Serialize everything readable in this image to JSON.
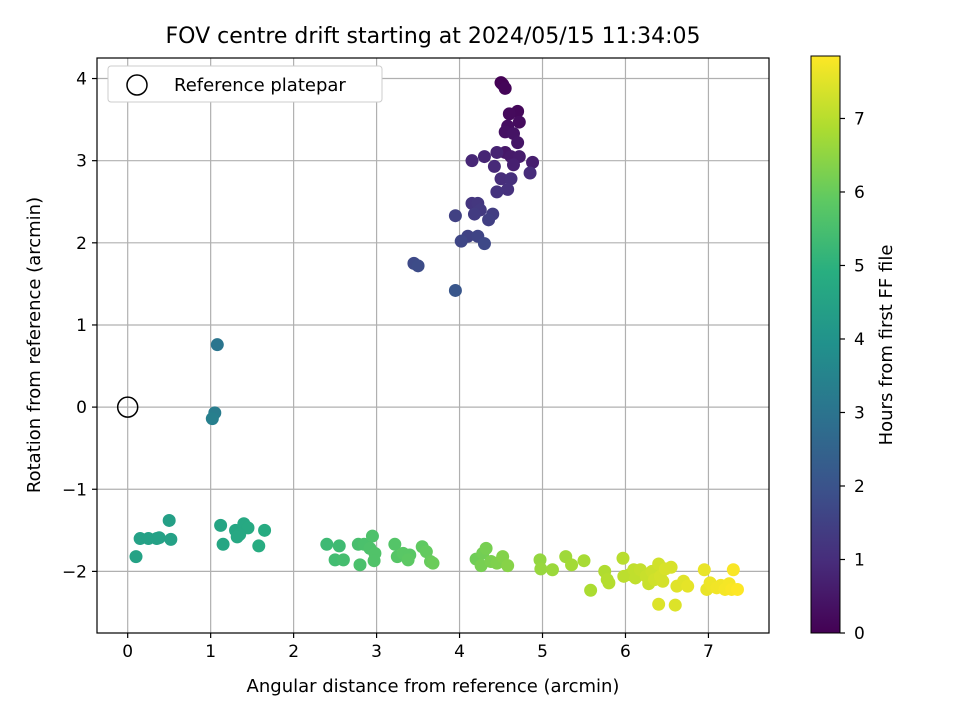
{
  "chart_data": {
    "type": "scatter",
    "title": "FOV centre drift starting at 2024/05/15 11:34:05",
    "xlabel": "Angular distance from reference (arcmin)",
    "ylabel": "Rotation from reference (arcmin)",
    "xlim": [
      -0.37,
      7.73
    ],
    "ylim": [
      -2.75,
      4.25
    ],
    "xticks": [
      0,
      1,
      2,
      3,
      4,
      5,
      6,
      7
    ],
    "xtick_labels": [
      "0",
      "1",
      "2",
      "3",
      "4",
      "5",
      "6",
      "7"
    ],
    "yticks": [
      -2,
      -1,
      0,
      1,
      2,
      3,
      4
    ],
    "ytick_labels": [
      "−2",
      "−1",
      "0",
      "1",
      "2",
      "3",
      "4"
    ],
    "grid": true,
    "legend": {
      "position": "top-left",
      "entries": [
        "Reference platepar"
      ]
    },
    "reference_point": {
      "x": 0,
      "y": 0
    },
    "colorbar": {
      "label": "Hours from first FF file",
      "colormap": "viridis",
      "range": [
        0,
        7.85
      ],
      "ticks": [
        0,
        1,
        2,
        3,
        4,
        5,
        6,
        7
      ],
      "tick_labels": [
        "0",
        "1",
        "2",
        "3",
        "4",
        "5",
        "6",
        "7"
      ]
    },
    "points": [
      {
        "x": 4.5,
        "y": 3.95,
        "h": 0.0
      },
      {
        "x": 4.52,
        "y": 3.93,
        "h": 0.05
      },
      {
        "x": 4.55,
        "y": 3.88,
        "h": 0.1
      },
      {
        "x": 4.7,
        "y": 3.6,
        "h": 0.15
      },
      {
        "x": 4.6,
        "y": 3.57,
        "h": 0.2
      },
      {
        "x": 4.72,
        "y": 3.47,
        "h": 0.25
      },
      {
        "x": 4.58,
        "y": 3.42,
        "h": 0.3
      },
      {
        "x": 4.55,
        "y": 3.35,
        "h": 0.35
      },
      {
        "x": 4.65,
        "y": 3.33,
        "h": 0.4
      },
      {
        "x": 4.7,
        "y": 3.22,
        "h": 0.45
      },
      {
        "x": 4.55,
        "y": 3.1,
        "h": 0.5
      },
      {
        "x": 4.62,
        "y": 3.05,
        "h": 0.55
      },
      {
        "x": 4.72,
        "y": 3.05,
        "h": 0.6
      },
      {
        "x": 4.88,
        "y": 2.98,
        "h": 0.65
      },
      {
        "x": 4.65,
        "y": 2.95,
        "h": 0.7
      },
      {
        "x": 4.45,
        "y": 3.1,
        "h": 0.75
      },
      {
        "x": 4.3,
        "y": 3.05,
        "h": 0.8
      },
      {
        "x": 4.15,
        "y": 3.0,
        "h": 0.85
      },
      {
        "x": 4.42,
        "y": 2.93,
        "h": 0.9
      },
      {
        "x": 4.85,
        "y": 2.85,
        "h": 0.95
      },
      {
        "x": 4.5,
        "y": 2.78,
        "h": 1.0
      },
      {
        "x": 4.62,
        "y": 2.78,
        "h": 1.05
      },
      {
        "x": 4.58,
        "y": 2.65,
        "h": 1.1
      },
      {
        "x": 4.45,
        "y": 2.62,
        "h": 1.15
      },
      {
        "x": 4.15,
        "y": 2.48,
        "h": 1.2
      },
      {
        "x": 4.22,
        "y": 2.48,
        "h": 1.25
      },
      {
        "x": 4.25,
        "y": 2.4,
        "h": 1.3
      },
      {
        "x": 4.18,
        "y": 2.35,
        "h": 1.35
      },
      {
        "x": 4.4,
        "y": 2.35,
        "h": 1.4
      },
      {
        "x": 4.35,
        "y": 2.28,
        "h": 1.45
      },
      {
        "x": 3.95,
        "y": 2.33,
        "h": 1.5
      },
      {
        "x": 4.1,
        "y": 2.08,
        "h": 1.55
      },
      {
        "x": 4.22,
        "y": 2.08,
        "h": 1.6
      },
      {
        "x": 4.02,
        "y": 2.02,
        "h": 1.65
      },
      {
        "x": 4.3,
        "y": 1.99,
        "h": 1.7
      },
      {
        "x": 3.45,
        "y": 1.75,
        "h": 1.75
      },
      {
        "x": 3.5,
        "y": 1.72,
        "h": 1.8
      },
      {
        "x": 3.95,
        "y": 1.42,
        "h": 2.1
      },
      {
        "x": 1.08,
        "y": 0.76,
        "h": 3.05
      },
      {
        "x": 1.05,
        "y": -0.07,
        "h": 3.25
      },
      {
        "x": 1.02,
        "y": -0.14,
        "h": 3.35
      },
      {
        "x": 0.5,
        "y": -1.38,
        "h": 4.4
      },
      {
        "x": 0.15,
        "y": -1.6,
        "h": 4.45
      },
      {
        "x": 0.25,
        "y": -1.6,
        "h": 4.45
      },
      {
        "x": 0.35,
        "y": -1.6,
        "h": 4.45
      },
      {
        "x": 0.38,
        "y": -1.59,
        "h": 4.45
      },
      {
        "x": 0.52,
        "y": -1.61,
        "h": 4.45
      },
      {
        "x": 0.1,
        "y": -1.82,
        "h": 4.5
      },
      {
        "x": 1.12,
        "y": -1.44,
        "h": 4.6
      },
      {
        "x": 1.3,
        "y": -1.5,
        "h": 4.65
      },
      {
        "x": 1.4,
        "y": -1.42,
        "h": 4.7
      },
      {
        "x": 1.45,
        "y": -1.47,
        "h": 4.75
      },
      {
        "x": 1.65,
        "y": -1.5,
        "h": 4.8
      },
      {
        "x": 1.35,
        "y": -1.55,
        "h": 4.7
      },
      {
        "x": 1.32,
        "y": -1.58,
        "h": 4.7
      },
      {
        "x": 1.15,
        "y": -1.67,
        "h": 4.65
      },
      {
        "x": 1.58,
        "y": -1.69,
        "h": 4.85
      },
      {
        "x": 2.4,
        "y": -1.67,
        "h": 5.3
      },
      {
        "x": 2.55,
        "y": -1.69,
        "h": 5.35
      },
      {
        "x": 2.5,
        "y": -1.86,
        "h": 5.4
      },
      {
        "x": 2.6,
        "y": -1.86,
        "h": 5.45
      },
      {
        "x": 2.78,
        "y": -1.67,
        "h": 5.5
      },
      {
        "x": 2.85,
        "y": -1.67,
        "h": 5.55
      },
      {
        "x": 2.8,
        "y": -1.92,
        "h": 5.55
      },
      {
        "x": 2.95,
        "y": -1.57,
        "h": 5.6
      },
      {
        "x": 2.92,
        "y": -1.72,
        "h": 5.6
      },
      {
        "x": 2.98,
        "y": -1.78,
        "h": 5.65
      },
      {
        "x": 2.97,
        "y": -1.87,
        "h": 5.65
      },
      {
        "x": 3.22,
        "y": -1.67,
        "h": 5.7
      },
      {
        "x": 3.25,
        "y": -1.82,
        "h": 5.75
      },
      {
        "x": 3.32,
        "y": -1.78,
        "h": 5.8
      },
      {
        "x": 3.4,
        "y": -1.8,
        "h": 5.8
      },
      {
        "x": 3.38,
        "y": -1.86,
        "h": 5.85
      },
      {
        "x": 3.55,
        "y": -1.7,
        "h": 5.9
      },
      {
        "x": 3.6,
        "y": -1.76,
        "h": 5.95
      },
      {
        "x": 3.65,
        "y": -1.88,
        "h": 6.0
      },
      {
        "x": 3.68,
        "y": -1.9,
        "h": 6.05
      },
      {
        "x": 4.2,
        "y": -1.85,
        "h": 6.1
      },
      {
        "x": 4.28,
        "y": -1.78,
        "h": 6.15
      },
      {
        "x": 4.32,
        "y": -1.72,
        "h": 6.2
      },
      {
        "x": 4.26,
        "y": -1.93,
        "h": 6.2
      },
      {
        "x": 4.38,
        "y": -1.88,
        "h": 6.25
      },
      {
        "x": 4.45,
        "y": -1.9,
        "h": 6.3
      },
      {
        "x": 4.52,
        "y": -1.82,
        "h": 6.35
      },
      {
        "x": 4.58,
        "y": -1.93,
        "h": 6.4
      },
      {
        "x": 4.97,
        "y": -1.86,
        "h": 6.55
      },
      {
        "x": 4.98,
        "y": -1.97,
        "h": 6.6
      },
      {
        "x": 5.12,
        "y": -1.98,
        "h": 6.65
      },
      {
        "x": 5.28,
        "y": -1.82,
        "h": 6.7
      },
      {
        "x": 5.35,
        "y": -1.92,
        "h": 6.75
      },
      {
        "x": 5.5,
        "y": -1.87,
        "h": 6.8
      },
      {
        "x": 5.58,
        "y": -2.23,
        "h": 6.85
      },
      {
        "x": 5.75,
        "y": -2.0,
        "h": 6.9
      },
      {
        "x": 5.78,
        "y": -2.1,
        "h": 6.95
      },
      {
        "x": 5.8,
        "y": -2.14,
        "h": 6.95
      },
      {
        "x": 5.97,
        "y": -1.84,
        "h": 7.0
      },
      {
        "x": 5.98,
        "y": -2.06,
        "h": 7.05
      },
      {
        "x": 6.05,
        "y": -2.04,
        "h": 7.05
      },
      {
        "x": 6.1,
        "y": -1.98,
        "h": 7.1
      },
      {
        "x": 6.12,
        "y": -2.08,
        "h": 7.1
      },
      {
        "x": 6.18,
        "y": -1.98,
        "h": 7.15
      },
      {
        "x": 6.25,
        "y": -2.06,
        "h": 7.2
      },
      {
        "x": 6.28,
        "y": -2.15,
        "h": 7.2
      },
      {
        "x": 6.32,
        "y": -2.0,
        "h": 7.25
      },
      {
        "x": 6.35,
        "y": -2.1,
        "h": 7.3
      },
      {
        "x": 6.4,
        "y": -1.91,
        "h": 7.3
      },
      {
        "x": 6.42,
        "y": -2.06,
        "h": 7.35
      },
      {
        "x": 6.45,
        "y": -2.12,
        "h": 7.35
      },
      {
        "x": 6.48,
        "y": -1.97,
        "h": 7.4
      },
      {
        "x": 6.55,
        "y": -1.95,
        "h": 7.4
      },
      {
        "x": 6.4,
        "y": -2.4,
        "h": 7.45
      },
      {
        "x": 6.6,
        "y": -2.41,
        "h": 7.45
      },
      {
        "x": 6.62,
        "y": -2.18,
        "h": 7.5
      },
      {
        "x": 6.7,
        "y": -2.12,
        "h": 7.5
      },
      {
        "x": 6.75,
        "y": -2.18,
        "h": 7.55
      },
      {
        "x": 6.95,
        "y": -1.98,
        "h": 7.6
      },
      {
        "x": 6.98,
        "y": -2.22,
        "h": 7.6
      },
      {
        "x": 7.02,
        "y": -2.14,
        "h": 7.65
      },
      {
        "x": 7.05,
        "y": -2.18,
        "h": 7.65
      },
      {
        "x": 7.1,
        "y": -2.2,
        "h": 7.7
      },
      {
        "x": 7.15,
        "y": -2.17,
        "h": 7.7
      },
      {
        "x": 7.2,
        "y": -2.22,
        "h": 7.75
      },
      {
        "x": 7.25,
        "y": -2.15,
        "h": 7.75
      },
      {
        "x": 7.3,
        "y": -1.98,
        "h": 7.8
      },
      {
        "x": 7.28,
        "y": -2.22,
        "h": 7.8
      },
      {
        "x": 7.35,
        "y": -2.22,
        "h": 7.85
      }
    ]
  }
}
